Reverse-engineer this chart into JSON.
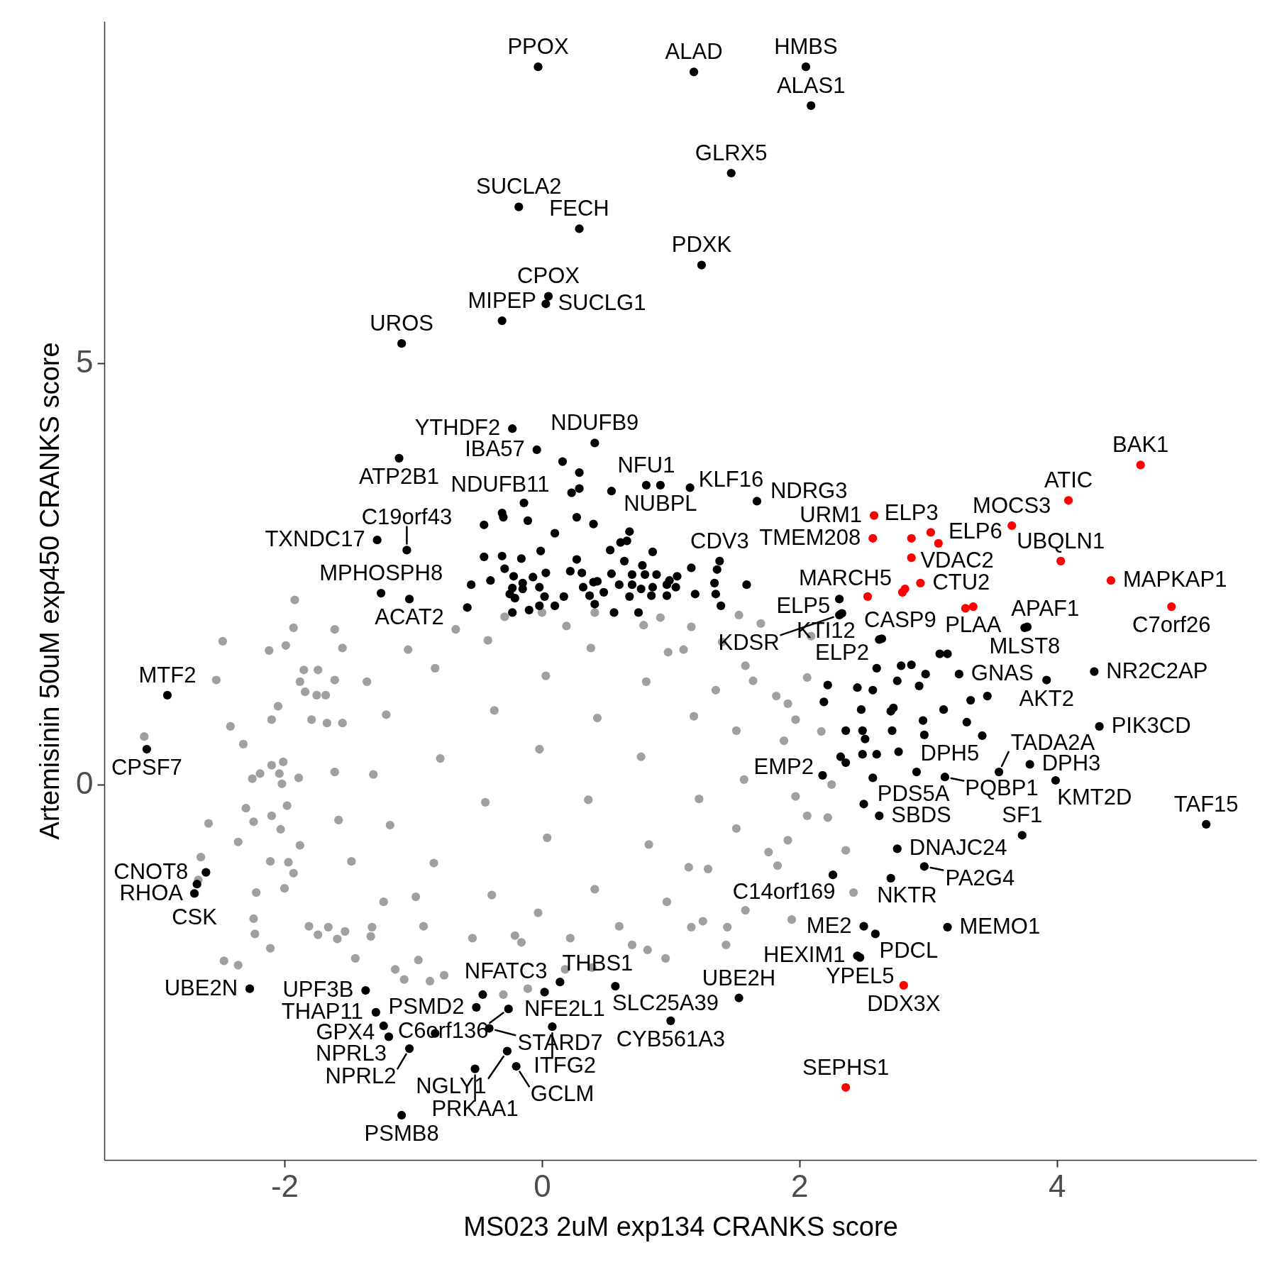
{
  "chart_data": {
    "type": "scatter",
    "xlabel": "MS023 2uM exp134 CRANKS score",
    "ylabel": "Artemisinin 50uM exp450 CRANKS score",
    "xlim": [
      -3.4,
      5.55
    ],
    "ylim": [
      -4.45,
      9.05
    ],
    "xticks": [
      -2,
      0,
      2,
      4
    ],
    "yticks": [
      0,
      5
    ],
    "grid": false,
    "marker": "circle",
    "series": [
      {
        "color": "#a0a0a0",
        "x": [
          -1.92,
          -1.93,
          -1.61,
          -2.48,
          -2.12,
          -1.99,
          -1.55,
          -1.85,
          -1.74,
          -2.53,
          -1.88,
          -1.84,
          -1.75,
          -1.68,
          -1.61,
          -2.05,
          -2.1,
          -2.42,
          -3.09,
          -2.32,
          -1.79,
          -1.67,
          -2.25,
          -2.19,
          -2.1,
          -2.01,
          -2.04,
          -2.02,
          -1.89,
          -2.59,
          -2.3,
          -2.24,
          -2.1,
          -2.03,
          -1.98,
          -2.36,
          -2.65,
          -2.67,
          -2.11,
          -1.97,
          -1.93,
          -2.22,
          -2.0,
          -1.88,
          -2.24,
          -2.23,
          -2.11,
          -2.47,
          -2.36,
          -1.81,
          -1.74,
          -1.66,
          -1.59,
          -1.53,
          -1.45,
          -1.32,
          -1.33,
          -1.14,
          -1.07,
          -0.96,
          -0.87,
          -0.76,
          -0.3,
          -0.11,
          0.39,
          0.18,
          0.7,
          0.82,
          0.96,
          1.16,
          1.25,
          1.43,
          1.44,
          1.58,
          1.94,
          2.42,
          1.91,
          1.76,
          1.83,
          2.22,
          2.17,
          2.09,
          1.7,
          1.53,
          2.06,
          2.25,
          1.97,
          2.06,
          1.88,
          1.97,
          1.91,
          1.82,
          1.64,
          1.58,
          1.4,
          1.16,
          0.92,
          2.36,
          0.0,
          -0.29,
          -0.67,
          -1.04,
          -1.36,
          -1.55,
          -1.61,
          -1.58,
          -1.48,
          -1.23,
          -0.92,
          -0.54,
          -0.16,
          0.22,
          0.6,
          0.97,
          1.29,
          1.51,
          1.57,
          1.51,
          1.35,
          1.1,
          0.79,
          0.41,
          -1.21,
          -1.18,
          -0.83,
          -0.79,
          -0.84,
          -0.42,
          -0.37,
          -0.44,
          -0.39,
          0.03,
          -0.02,
          0.04,
          -0.03,
          0.38,
          0.43,
          0.36,
          0.41,
          0.81,
          0.77,
          0.83,
          1.18,
          1.22,
          1.14,
          -1.31,
          -0.98,
          0.19,
          -0.21,
          0.98
        ],
        "values": [
          2.19,
          1.86,
          1.84,
          1.7,
          1.59,
          1.65,
          1.62,
          1.36,
          1.36,
          1.24,
          1.22,
          1.1,
          1.06,
          1.06,
          1.24,
          0.93,
          0.77,
          0.69,
          0.57,
          0.48,
          0.77,
          0.73,
          0.07,
          0.13,
          0.23,
          0.27,
          0.13,
          0.01,
          0.08,
          -0.46,
          -0.28,
          -0.44,
          -0.37,
          -0.53,
          -0.25,
          -0.68,
          -0.86,
          -1.13,
          -0.91,
          -0.92,
          -1.05,
          -1.28,
          -1.23,
          -0.72,
          -1.59,
          -1.77,
          -1.94,
          -2.09,
          -2.14,
          -1.68,
          -1.78,
          -1.69,
          -1.83,
          -1.74,
          -2.06,
          -1.69,
          -1.8,
          -2.19,
          -2.31,
          -2.08,
          -2.33,
          -2.26,
          -2.49,
          -2.42,
          -2.17,
          -2.19,
          -1.9,
          -1.96,
          -2.06,
          -1.69,
          -1.62,
          -1.9,
          -1.69,
          -1.49,
          -1.6,
          -1.28,
          -0.66,
          -0.8,
          -0.96,
          -0.39,
          0.63,
          1.76,
          1.91,
          2.01,
          1.27,
          0.0,
          -0.14,
          -0.37,
          0.52,
          0.77,
          0.96,
          1.05,
          1.23,
          1.41,
          1.69,
          1.87,
          1.98,
          -0.78,
          2.04,
          1.99,
          1.84,
          1.6,
          1.22,
          0.73,
          0.15,
          -0.42,
          -0.91,
          -1.39,
          -1.68,
          -1.82,
          -1.87,
          -1.82,
          -1.68,
          -1.39,
          -1.0,
          -0.52,
          0.06,
          0.64,
          1.12,
          1.6,
          1.89,
          2.04,
          0.83,
          -0.48,
          1.38,
          0.31,
          -0.93,
          1.71,
          0.88,
          -0.21,
          -1.31,
          1.29,
          0.42,
          -0.63,
          -1.52,
          1.62,
          0.79,
          -0.18,
          -1.24,
          1.22,
          0.33,
          -0.71,
          0.81,
          -0.17,
          -0.98,
          0.12,
          -1.33,
          1.88,
          -1.79,
          1.57
        ]
      },
      {
        "color": "#000000",
        "x": [
          -0.03,
          1.18,
          2.05,
          2.09,
          1.47,
          -0.18,
          0.29,
          1.24,
          0.05,
          0.03,
          -0.31,
          -1.09,
          -0.04,
          -0.23,
          0.41,
          0.92,
          0.81,
          -1.11,
          -0.14,
          1.67,
          1.15,
          -1.28,
          1.38,
          -1.05,
          -1.25,
          -1.03,
          2.31,
          2.33,
          2.31,
          2.64,
          2.62,
          3.75,
          3.77,
          3.24,
          4.29,
          3.92,
          4.33,
          -2.91,
          -3.07,
          2.18,
          2.91,
          3.79,
          2.5,
          2.62,
          3.13,
          3.99,
          3.55,
          5.16,
          2.71,
          2.76,
          3.73,
          -2.61,
          2.26,
          2.97,
          -2.68,
          -2.7,
          2.59,
          2.5,
          3.15,
          -0.46,
          0.14,
          2.45,
          2.47,
          -1.37,
          0.02,
          0.57,
          -2.27,
          -1.29,
          -0.51,
          0.08,
          1.53,
          -1.23,
          -0.41,
          1.0,
          -1.19,
          -1.03,
          -0.27,
          -0.26,
          -0.52,
          -0.2,
          -1.09,
          0.16,
          0.29,
          0.23,
          0.29,
          0.54,
          -0.31,
          -0.3,
          -0.11,
          -0.45,
          0.27,
          0.4,
          0.1,
          0.68,
          0.66,
          0.61,
          -0.01,
          0.53,
          0.86,
          -0.45,
          -0.31,
          -0.16,
          0.27,
          0.64,
          0.78,
          1.16,
          1.36,
          -0.29,
          -0.22,
          -0.07,
          0.03,
          0.22,
          0.31,
          0.54,
          0.7,
          0.8,
          0.89,
          0.99,
          1.05,
          1.34,
          1.59,
          -0.55,
          -0.4,
          -0.15,
          -0.15,
          -0.02,
          0.32,
          0.4,
          0.43,
          0.6,
          0.7,
          0.86,
          0.97,
          1.04,
          1.19,
          1.35,
          -0.25,
          -0.21,
          0.02,
          0.17,
          0.37,
          0.68,
          0.85,
          0.97,
          -0.58,
          -0.23,
          -0.1,
          -0.02,
          0.1,
          0.41,
          0.48,
          0.75,
          0.56,
          0.77,
          1.39,
          -0.23,
          2.22,
          2.19,
          2.45,
          2.57,
          2.48,
          2.6,
          2.36,
          2.49,
          2.51,
          2.49,
          2.6,
          2.57,
          2.32,
          2.36,
          2.79,
          2.87,
          2.98,
          3.09,
          3.15,
          2.76,
          2.93,
          2.71,
          2.73,
          3.12,
          3.33,
          3.46,
          3.3,
          3.42,
          2.96,
          2.97,
          2.72,
          2.77,
          -0.83
        ],
        "values": [
          8.51,
          8.45,
          8.51,
          8.05,
          7.25,
          6.85,
          6.59,
          6.16,
          5.79,
          5.7,
          5.5,
          5.23,
          3.97,
          4.22,
          4.05,
          3.55,
          3.55,
          3.87,
          3.34,
          3.36,
          3.52,
          2.9,
          2.65,
          2.78,
          2.27,
          2.2,
          2.2,
          2.03,
          2.01,
          1.73,
          1.72,
          1.86,
          1.87,
          1.31,
          1.34,
          1.24,
          0.69,
          1.06,
          0.42,
          0.11,
          0.15,
          0.24,
          -0.23,
          -0.37,
          0.09,
          0.05,
          0.15,
          -0.47,
          -1.11,
          -0.76,
          -0.6,
          -1.04,
          -1.07,
          -0.97,
          -1.18,
          -1.29,
          -1.77,
          -1.68,
          -1.69,
          -2.49,
          -2.34,
          -2.03,
          -2.05,
          -2.44,
          -2.46,
          -2.39,
          -2.42,
          -2.7,
          -2.64,
          -2.87,
          -2.53,
          -2.86,
          -2.89,
          -2.8,
          -2.99,
          -3.13,
          -3.16,
          -2.66,
          -3.37,
          -3.34,
          -3.92,
          3.83,
          3.7,
          3.46,
          3.51,
          3.48,
          3.22,
          3.17,
          3.13,
          3.08,
          3.17,
          3.09,
          2.98,
          3.0,
          2.89,
          2.87,
          2.77,
          2.78,
          2.76,
          2.7,
          2.71,
          2.68,
          2.67,
          2.65,
          2.6,
          2.57,
          2.55,
          2.56,
          2.47,
          2.46,
          2.51,
          2.53,
          2.51,
          2.5,
          2.49,
          2.49,
          2.49,
          2.42,
          2.47,
          2.39,
          2.37,
          2.37,
          2.42,
          2.39,
          2.32,
          2.34,
          2.34,
          2.4,
          2.41,
          2.37,
          2.37,
          2.34,
          2.37,
          2.34,
          2.26,
          2.26,
          2.26,
          2.21,
          2.23,
          2.23,
          2.24,
          2.23,
          2.24,
          2.24,
          2.1,
          2.04,
          2.07,
          2.12,
          2.12,
          2.14,
          2.28,
          2.04,
          2.04,
          2.32,
          2.12,
          2.33,
          1.18,
          0.98,
          1.15,
          1.12,
          0.89,
          1.38,
          0.64,
          0.64,
          0.54,
          0.36,
          0.36,
          0.08,
          0.33,
          0.26,
          1.41,
          1.42,
          1.31,
          1.55,
          1.55,
          1.23,
          1.17,
          0.87,
          0.91,
          0.89,
          1.0,
          1.05,
          0.74,
          0.58,
          0.76,
          0.59,
          0.64,
          0.39,
          -2.95
        ]
      },
      {
        "color": "#ff0000",
        "x": [
          4.65,
          4.09,
          2.58,
          3.02,
          2.87,
          3.65,
          2.57,
          3.08,
          4.03,
          2.53,
          2.94,
          3.35,
          4.42,
          4.89,
          2.81,
          2.36,
          2.87,
          2.82,
          2.8,
          3.29
        ],
        "values": [
          3.79,
          3.37,
          3.19,
          2.99,
          2.92,
          3.07,
          2.92,
          2.86,
          2.65,
          2.23,
          2.39,
          2.11,
          2.42,
          2.11,
          -2.38,
          -3.59,
          2.69,
          2.32,
          2.28,
          2.09
        ]
      }
    ],
    "annotations": [
      {
        "text": "PPOX",
        "x": -0.03,
        "y": 8.51
      },
      {
        "text": "ALAD",
        "x": 1.18,
        "y": 8.45
      },
      {
        "text": "HMBS",
        "x": 2.05,
        "y": 8.51
      },
      {
        "text": "ALAS1",
        "x": 2.09,
        "y": 8.05
      },
      {
        "text": "GLRX5",
        "x": 1.47,
        "y": 7.25
      },
      {
        "text": "SUCLA2",
        "x": -0.18,
        "y": 6.85
      },
      {
        "text": "FECH",
        "x": 0.29,
        "y": 6.59
      },
      {
        "text": "PDXK",
        "x": 1.24,
        "y": 6.16
      },
      {
        "text": "CPOX",
        "x": 0.05,
        "y": 5.79
      },
      {
        "text": "SUCLG1",
        "x": 0.03,
        "y": 5.7
      },
      {
        "text": "MIPEP",
        "x": -0.31,
        "y": 5.5
      },
      {
        "text": "UROS",
        "x": -1.09,
        "y": 5.23
      },
      {
        "text": "BAK1",
        "x": 4.65,
        "y": 3.79
      },
      {
        "text": "ATIC",
        "x": 4.09,
        "y": 3.37
      },
      {
        "text": "MOCS3",
        "x": 3.65,
        "y": 3.07
      },
      {
        "text": "UBQLN1",
        "x": 4.03,
        "y": 2.65
      },
      {
        "text": "MAPKAP1",
        "x": 4.42,
        "y": 2.42
      },
      {
        "text": "C7orf26",
        "x": 4.89,
        "y": 2.11
      },
      {
        "text": "URM1",
        "x": 2.58,
        "y": 3.19
      },
      {
        "text": "ELP6",
        "x": 3.02,
        "y": 2.99
      },
      {
        "text": "ELP3",
        "x": 2.87,
        "y": 2.92
      },
      {
        "text": "TMEM208",
        "x": 2.57,
        "y": 2.92
      },
      {
        "text": "VDAC2",
        "x": 3.08,
        "y": 2.86
      },
      {
        "text": "MARCH5",
        "x": 2.53,
        "y": 2.23
      },
      {
        "text": "CTU2",
        "x": 2.94,
        "y": 2.39
      },
      {
        "text": "PLAA",
        "x": 3.35,
        "y": 2.11
      },
      {
        "text": "IBA57",
        "x": -0.04,
        "y": 3.97
      },
      {
        "text": "YTHDF2",
        "x": -0.23,
        "y": 4.22
      },
      {
        "text": "NDUFB9",
        "x": 0.41,
        "y": 4.05
      },
      {
        "text": "NUBPL",
        "x": 0.92,
        "y": 3.55
      },
      {
        "text": "NFU1",
        "x": 0.81,
        "y": 3.55
      },
      {
        "text": "ATP2B1",
        "x": -1.11,
        "y": 3.87
      },
      {
        "text": "NDUFB11",
        "x": -0.14,
        "y": 3.34
      },
      {
        "text": "NDRG3",
        "x": 1.67,
        "y": 3.36
      },
      {
        "text": "KLF16",
        "x": 1.15,
        "y": 3.52
      },
      {
        "text": "TXNDC17",
        "x": -1.28,
        "y": 2.9
      },
      {
        "text": "CDV3",
        "x": 1.38,
        "y": 2.65
      },
      {
        "text": "C19orf43",
        "x": -1.05,
        "y": 2.78
      },
      {
        "text": "MPHOSPH8",
        "x": -1.25,
        "y": 2.27
      },
      {
        "text": "ACAT2",
        "x": -1.03,
        "y": 2.2
      },
      {
        "text": "ELP5",
        "x": 2.31,
        "y": 2.2
      },
      {
        "text": "KTI12",
        "x": 2.33,
        "y": 2.03
      },
      {
        "text": "KDSR",
        "x": 2.31,
        "y": 2.01
      },
      {
        "text": "CASP9",
        "x": 2.64,
        "y": 1.73
      },
      {
        "text": "ELP2",
        "x": 2.62,
        "y": 1.72
      },
      {
        "text": "MLST8",
        "x": 3.75,
        "y": 1.86
      },
      {
        "text": "APAF1",
        "x": 3.77,
        "y": 1.87
      },
      {
        "text": "GNAS",
        "x": 3.24,
        "y": 1.31
      },
      {
        "text": "NR2C2AP",
        "x": 4.29,
        "y": 1.34
      },
      {
        "text": "AKT2",
        "x": 3.92,
        "y": 1.24
      },
      {
        "text": "PIK3CD",
        "x": 4.33,
        "y": 0.69
      },
      {
        "text": "MTF2",
        "x": -2.91,
        "y": 1.06
      },
      {
        "text": "CPSF7",
        "x": -3.07,
        "y": 0.42
      },
      {
        "text": "EMP2",
        "x": 2.18,
        "y": 0.11
      },
      {
        "text": "DPH5",
        "x": 2.91,
        "y": 0.15
      },
      {
        "text": "DPH3",
        "x": 3.79,
        "y": 0.24
      },
      {
        "text": "PDS5A",
        "x": 2.5,
        "y": -0.23
      },
      {
        "text": "SBDS",
        "x": 2.62,
        "y": -0.37
      },
      {
        "text": "PQBP1",
        "x": 3.13,
        "y": 0.09
      },
      {
        "text": "KMT2D",
        "x": 3.99,
        "y": 0.05
      },
      {
        "text": "TADA2A",
        "x": 3.55,
        "y": 0.15
      },
      {
        "text": "TAF15",
        "x": 5.16,
        "y": -0.47
      },
      {
        "text": "NKTR",
        "x": 2.71,
        "y": -1.11
      },
      {
        "text": "DNAJC24",
        "x": 2.76,
        "y": -0.76
      },
      {
        "text": "SF1",
        "x": 3.73,
        "y": -0.6
      },
      {
        "text": "CNOT8",
        "x": -2.61,
        "y": -1.04
      },
      {
        "text": "C14orf169",
        "x": 2.26,
        "y": -1.07
      },
      {
        "text": "PA2G4",
        "x": 2.97,
        "y": -0.97
      },
      {
        "text": "RHOA",
        "x": -2.68,
        "y": -1.18
      },
      {
        "text": "CSK",
        "x": -2.7,
        "y": -1.29
      },
      {
        "text": "PDCL",
        "x": 2.59,
        "y": -1.77
      },
      {
        "text": "ME2",
        "x": 2.5,
        "y": -1.68
      },
      {
        "text": "MEMO1",
        "x": 3.15,
        "y": -1.69
      },
      {
        "text": "NFATC3",
        "x": -0.46,
        "y": -2.49
      },
      {
        "text": "THBS1",
        "x": 0.14,
        "y": -2.34
      },
      {
        "text": "HEXIM1",
        "x": 2.45,
        "y": -2.03
      },
      {
        "text": "YPEL5",
        "x": 2.47,
        "y": -2.05
      },
      {
        "text": "UPF3B",
        "x": -1.37,
        "y": -2.44
      },
      {
        "text": "NFE2L1",
        "x": 0.02,
        "y": -2.46
      },
      {
        "text": "SLC25A39",
        "x": 0.57,
        "y": -2.39
      },
      {
        "text": "UBE2N",
        "x": -2.27,
        "y": -2.42
      },
      {
        "text": "THAP11",
        "x": -1.29,
        "y": -2.7
      },
      {
        "text": "PSMD2",
        "x": -0.51,
        "y": -2.64
      },
      {
        "text": "ITFG2",
        "x": 0.08,
        "y": -2.87
      },
      {
        "text": "UBE2H",
        "x": 1.53,
        "y": -2.53
      },
      {
        "text": "DDX3X",
        "x": 2.81,
        "y": -2.38
      },
      {
        "text": "GPX4",
        "x": -1.23,
        "y": -2.86
      },
      {
        "text": "STARD7",
        "x": -0.41,
        "y": -2.89
      },
      {
        "text": "CYB561A3",
        "x": 1.0,
        "y": -2.8
      },
      {
        "text": "NPRL3",
        "x": -1.19,
        "y": -2.99
      },
      {
        "text": "NPRL2",
        "x": -1.03,
        "y": -3.13
      },
      {
        "text": "NGLY1",
        "x": -0.27,
        "y": -3.16
      },
      {
        "text": "C6orf136",
        "x": -0.26,
        "y": -2.66
      },
      {
        "text": "SEPHS1",
        "x": 2.36,
        "y": -3.59
      },
      {
        "text": "PRKAA1",
        "x": -0.52,
        "y": -3.37
      },
      {
        "text": "GCLM",
        "x": -0.2,
        "y": -3.34
      },
      {
        "text": "PSMB8",
        "x": -1.09,
        "y": -3.92
      }
    ]
  }
}
